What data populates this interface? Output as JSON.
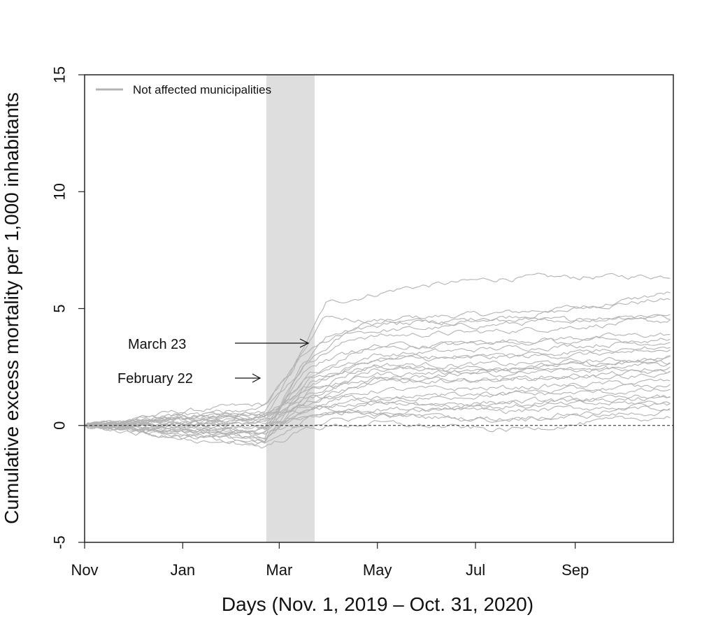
{
  "chart_data": {
    "type": "line",
    "xlabel": "Days (Nov. 1, 2019 – Oct. 31, 2020)",
    "ylabel": "Cumulative excess mortality per 1,000 inhabitants",
    "x_domain": [
      "2019-11-01",
      "2020-10-31"
    ],
    "ylim": [
      -5,
      15
    ],
    "y_ticks": [
      -5,
      0,
      5,
      10,
      15
    ],
    "x_ticks": [
      {
        "date": "2019-11-01",
        "label": "Nov"
      },
      {
        "date": "2020-01-01",
        "label": "Jan"
      },
      {
        "date": "2020-03-01",
        "label": "Mar"
      },
      {
        "date": "2020-05-01",
        "label": "May"
      },
      {
        "date": "2020-07-01",
        "label": "Jul"
      },
      {
        "date": "2020-09-01",
        "label": "Sep"
      }
    ],
    "grid": false,
    "legend_position": "top-left",
    "legend": [
      {
        "label": "Not affected municipalities",
        "color": "#b3b3b3"
      }
    ],
    "reference_line": {
      "y": 0,
      "style": "dashed"
    },
    "shaded_period": {
      "from": "2020-02-22",
      "to": "2020-03-23",
      "color": "#dedede"
    },
    "annotations": [
      {
        "text": "March 23",
        "points_to": "2020-03-23"
      },
      {
        "text": "February 22",
        "points_to": "2020-02-22"
      }
    ],
    "series_color": "#b3b3b3",
    "series": [
      {
        "values": [
          [
            0,
            0
          ],
          [
            60,
            -0.3
          ],
          [
            112,
            -0.5
          ],
          [
            130,
            2.0
          ],
          [
            150,
            3.8
          ],
          [
            200,
            4.6
          ],
          [
            260,
            4.8
          ],
          [
            366,
            5.4
          ]
        ]
      },
      {
        "values": [
          [
            0,
            0
          ],
          [
            60,
            0.6
          ],
          [
            112,
            0.9
          ],
          [
            128,
            2.2
          ],
          [
            150,
            5.2
          ],
          [
            200,
            5.9
          ],
          [
            260,
            6.3
          ],
          [
            366,
            6.4
          ]
        ]
      },
      {
        "values": [
          [
            0,
            0
          ],
          [
            60,
            0.1
          ],
          [
            112,
            0.3
          ],
          [
            130,
            2.5
          ],
          [
            150,
            4.6
          ],
          [
            220,
            4.4
          ],
          [
            300,
            4.9
          ],
          [
            366,
            5.7
          ]
        ]
      },
      {
        "values": [
          [
            0,
            0
          ],
          [
            60,
            -0.2
          ],
          [
            112,
            -0.4
          ],
          [
            135,
            2.5
          ],
          [
            165,
            4.0
          ],
          [
            230,
            4.2
          ],
          [
            366,
            4.8
          ]
        ]
      },
      {
        "values": [
          [
            0,
            0
          ],
          [
            60,
            0.4
          ],
          [
            112,
            0.7
          ],
          [
            140,
            2.8
          ],
          [
            170,
            3.8
          ],
          [
            250,
            4.0
          ],
          [
            366,
            4.5
          ]
        ]
      },
      {
        "values": [
          [
            0,
            0
          ],
          [
            60,
            -0.4
          ],
          [
            112,
            -0.6
          ],
          [
            140,
            2.0
          ],
          [
            170,
            3.2
          ],
          [
            250,
            3.6
          ],
          [
            366,
            3.9
          ]
        ]
      },
      {
        "values": [
          [
            0,
            0
          ],
          [
            60,
            0.2
          ],
          [
            112,
            0.1
          ],
          [
            140,
            2.2
          ],
          [
            180,
            3.0
          ],
          [
            260,
            3.3
          ],
          [
            366,
            3.6
          ]
        ]
      },
      {
        "values": [
          [
            0,
            0
          ],
          [
            60,
            -0.1
          ],
          [
            112,
            -0.3
          ],
          [
            140,
            1.8
          ],
          [
            180,
            2.8
          ],
          [
            260,
            2.9
          ],
          [
            366,
            3.2
          ]
        ]
      },
      {
        "values": [
          [
            0,
            0
          ],
          [
            60,
            0.3
          ],
          [
            112,
            0.4
          ],
          [
            140,
            1.6
          ],
          [
            180,
            2.6
          ],
          [
            260,
            2.6
          ],
          [
            366,
            2.9
          ]
        ]
      },
      {
        "values": [
          [
            0,
            0
          ],
          [
            60,
            -0.5
          ],
          [
            112,
            -0.7
          ],
          [
            140,
            1.2
          ],
          [
            180,
            2.4
          ],
          [
            260,
            2.5
          ],
          [
            366,
            2.7
          ]
        ]
      },
      {
        "values": [
          [
            0,
            0
          ],
          [
            60,
            0.0
          ],
          [
            112,
            0.2
          ],
          [
            140,
            1.4
          ],
          [
            180,
            2.2
          ],
          [
            260,
            2.3
          ],
          [
            366,
            2.5
          ]
        ]
      },
      {
        "values": [
          [
            0,
            0
          ],
          [
            60,
            0.5
          ],
          [
            112,
            0.3
          ],
          [
            140,
            1.0
          ],
          [
            180,
            1.8
          ],
          [
            260,
            2.0
          ],
          [
            366,
            2.3
          ]
        ]
      },
      {
        "values": [
          [
            0,
            0
          ],
          [
            60,
            -0.3
          ],
          [
            112,
            -0.2
          ],
          [
            140,
            0.8
          ],
          [
            180,
            1.5
          ],
          [
            260,
            1.6
          ],
          [
            366,
            1.9
          ]
        ]
      },
      {
        "values": [
          [
            0,
            0
          ],
          [
            60,
            0.1
          ],
          [
            112,
            -0.5
          ],
          [
            140,
            0.6
          ],
          [
            180,
            1.2
          ],
          [
            260,
            1.3
          ],
          [
            366,
            1.5
          ]
        ]
      },
      {
        "values": [
          [
            0,
            0
          ],
          [
            60,
            -0.6
          ],
          [
            112,
            -0.8
          ],
          [
            140,
            0.3
          ],
          [
            180,
            0.9
          ],
          [
            260,
            1.0
          ],
          [
            366,
            1.2
          ]
        ]
      },
      {
        "values": [
          [
            0,
            0
          ],
          [
            60,
            0.2
          ],
          [
            112,
            0.0
          ],
          [
            140,
            0.4
          ],
          [
            180,
            0.7
          ],
          [
            260,
            0.8
          ],
          [
            366,
            1.0
          ]
        ]
      },
      {
        "values": [
          [
            0,
            0
          ],
          [
            60,
            -0.2
          ],
          [
            112,
            -0.4
          ],
          [
            140,
            0.1
          ],
          [
            180,
            0.4
          ],
          [
            260,
            0.3
          ],
          [
            366,
            0.8
          ]
        ]
      },
      {
        "values": [
          [
            0,
            0
          ],
          [
            60,
            0.3
          ],
          [
            112,
            0.5
          ],
          [
            140,
            0.9
          ],
          [
            180,
            0.5
          ],
          [
            260,
            0.2
          ],
          [
            366,
            0.6
          ]
        ]
      },
      {
        "values": [
          [
            0,
            0
          ],
          [
            60,
            -0.4
          ],
          [
            112,
            -0.9
          ],
          [
            140,
            -0.1
          ],
          [
            180,
            0.1
          ],
          [
            260,
            -0.2
          ],
          [
            366,
            0.4
          ]
        ]
      },
      {
        "values": [
          [
            0,
            0
          ],
          [
            60,
            0.0
          ],
          [
            112,
            -0.1
          ],
          [
            140,
            1.1
          ],
          [
            180,
            1.9
          ],
          [
            260,
            2.4
          ],
          [
            366,
            2.8
          ]
        ]
      },
      {
        "values": [
          [
            0,
            0
          ],
          [
            60,
            -0.1
          ],
          [
            112,
            0.4
          ],
          [
            140,
            1.7
          ],
          [
            180,
            2.9
          ],
          [
            260,
            3.0
          ],
          [
            366,
            3.4
          ]
        ]
      },
      {
        "values": [
          [
            0,
            0
          ],
          [
            60,
            0.2
          ],
          [
            112,
            -0.2
          ],
          [
            140,
            2.6
          ],
          [
            180,
            3.4
          ],
          [
            260,
            3.5
          ],
          [
            366,
            3.7
          ]
        ]
      },
      {
        "values": [
          [
            0,
            0
          ],
          [
            60,
            0.1
          ],
          [
            112,
            0.6
          ],
          [
            140,
            1.3
          ],
          [
            180,
            1.1
          ],
          [
            260,
            1.4
          ],
          [
            366,
            1.7
          ]
        ]
      },
      {
        "values": [
          [
            0,
            0
          ],
          [
            60,
            -0.3
          ],
          [
            112,
            -0.1
          ],
          [
            140,
            0.5
          ],
          [
            180,
            0.6
          ],
          [
            260,
            0.9
          ],
          [
            366,
            1.3
          ]
        ]
      },
      {
        "values": [
          [
            0,
            0
          ],
          [
            60,
            0.4
          ],
          [
            112,
            0.2
          ],
          [
            140,
            2.1
          ],
          [
            180,
            2.5
          ],
          [
            260,
            2.2
          ],
          [
            366,
            2.6
          ]
        ]
      },
      {
        "values": [
          [
            0,
            0
          ],
          [
            60,
            -0.2
          ],
          [
            112,
            -0.6
          ],
          [
            140,
            1.5
          ],
          [
            180,
            2.0
          ],
          [
            260,
            1.9
          ],
          [
            366,
            2.2
          ]
        ]
      },
      {
        "values": [
          [
            0,
            0
          ],
          [
            60,
            0.0
          ],
          [
            112,
            0.5
          ],
          [
            140,
            0.7
          ],
          [
            180,
            1.0
          ],
          [
            260,
            0.6
          ],
          [
            366,
            0.9
          ]
        ]
      },
      {
        "values": [
          [
            0,
            0
          ],
          [
            60,
            0.3
          ],
          [
            112,
            0.8
          ],
          [
            135,
            3.0
          ],
          [
            170,
            4.3
          ],
          [
            250,
            4.5
          ],
          [
            366,
            4.6
          ]
        ]
      }
    ]
  }
}
